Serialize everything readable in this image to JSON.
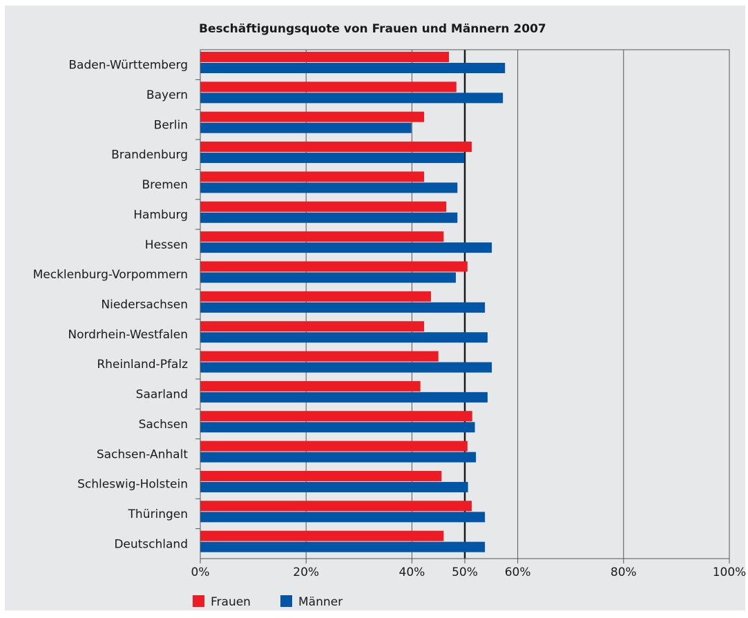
{
  "chart_data": {
    "type": "bar",
    "orientation": "horizontal",
    "title": "Beschäftigungsquote von Frauen und Männern 2007",
    "xlabel": "",
    "ylabel": "",
    "xlim": [
      0,
      100
    ],
    "ticks": [
      0,
      20,
      40,
      50,
      60,
      80,
      100
    ],
    "tick_labels": [
      "0%",
      "20%",
      "40%",
      "50%",
      "60%",
      "80%",
      "100%"
    ],
    "grid": true,
    "reference_line": 50,
    "legend_position": "bottom-left",
    "categories": [
      "Baden-Württemberg",
      "Bayern",
      "Berlin",
      "Brandenburg",
      "Bremen",
      "Hamburg",
      "Hessen",
      "Mecklenburg-Vorpommern",
      "Niedersachsen",
      "Nordrhein-Westfalen",
      "Rheinland-Pfalz",
      "Saarland",
      "Sachsen",
      "Sachsen-Anhalt",
      "Schleswig-Holstein",
      "Thüringen",
      "Deutschland"
    ],
    "series": [
      {
        "name": "Frauen",
        "color": "#ed1c24",
        "values": [
          47.0,
          48.4,
          42.3,
          51.3,
          42.3,
          46.5,
          46.0,
          50.5,
          43.6,
          42.3,
          45.0,
          41.6,
          51.4,
          50.5,
          45.6,
          51.3,
          46.0
        ]
      },
      {
        "name": "Männer",
        "color": "#0055a5",
        "values": [
          57.6,
          57.2,
          39.9,
          49.9,
          48.6,
          48.6,
          55.1,
          48.3,
          53.8,
          54.3,
          55.1,
          54.3,
          51.9,
          52.1,
          50.6,
          53.8,
          53.8
        ]
      }
    ]
  }
}
